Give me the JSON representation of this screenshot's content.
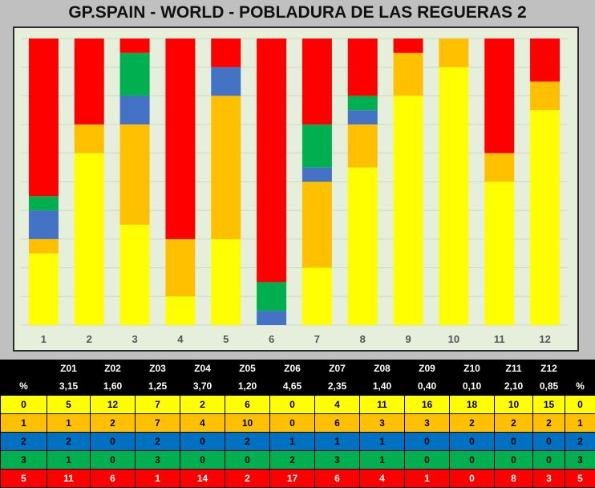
{
  "chart_data": {
    "type": "bar",
    "stacked": true,
    "title": "GP.SPAIN - WORLD  - POBLADURA DE LAS REGUERAS 2",
    "categories": [
      "1",
      "2",
      "3",
      "4",
      "5",
      "6",
      "7",
      "8",
      "9",
      "10",
      "11",
      "12"
    ],
    "series": [
      {
        "name": "0",
        "color": "#ffff00",
        "values": [
          5,
          12,
          7,
          2,
          6,
          0,
          4,
          11,
          16,
          18,
          10,
          15
        ]
      },
      {
        "name": "1",
        "color": "#ffc000",
        "values": [
          1,
          2,
          7,
          4,
          10,
          0,
          6,
          3,
          3,
          2,
          2,
          2
        ]
      },
      {
        "name": "2",
        "color": "#4472c4",
        "values": [
          2,
          0,
          2,
          0,
          2,
          1,
          1,
          1,
          0,
          0,
          0,
          0
        ]
      },
      {
        "name": "3",
        "color": "#00b050",
        "values": [
          1,
          0,
          3,
          0,
          0,
          2,
          3,
          1,
          0,
          0,
          0,
          0
        ]
      },
      {
        "name": "5",
        "color": "#ff0000",
        "values": [
          11,
          6,
          1,
          14,
          2,
          17,
          6,
          4,
          1,
          0,
          8,
          3
        ]
      }
    ],
    "ylim": [
      0,
      20
    ],
    "grid": true,
    "legend": "none"
  },
  "table": {
    "header_cells": [
      "",
      "Z01",
      "Z02",
      "Z03",
      "Z04",
      "Z05",
      "Z06",
      "Z07",
      "Z08",
      "Z09",
      "Z10",
      "Z11",
      "Z12",
      ""
    ],
    "pct_row": {
      "label": "%",
      "values": [
        "3,15",
        "1,60",
        "1,25",
        "3,70",
        "1,20",
        "4,65",
        "2,35",
        "1,40",
        "0,40",
        "0,10",
        "2,10",
        "0,85"
      ],
      "end": "%"
    },
    "rows": [
      {
        "label": "0",
        "values": [
          "5",
          "12",
          "7",
          "2",
          "6",
          "0",
          "4",
          "11",
          "16",
          "18",
          "10",
          "15"
        ],
        "end": "0",
        "bg": "#ffff00",
        "fg": "#000000"
      },
      {
        "label": "1",
        "values": [
          "1",
          "2",
          "7",
          "4",
          "10",
          "0",
          "6",
          "3",
          "3",
          "2",
          "2",
          "2"
        ],
        "end": "1",
        "bg": "#ffc000",
        "fg": "#000000"
      },
      {
        "label": "2",
        "values": [
          "2",
          "0",
          "2",
          "0",
          "2",
          "1",
          "1",
          "1",
          "0",
          "0",
          "0",
          "0"
        ],
        "end": "2",
        "bg": "#0070c0",
        "fg": "#000000"
      },
      {
        "label": "3",
        "values": [
          "1",
          "0",
          "3",
          "0",
          "0",
          "2",
          "3",
          "1",
          "0",
          "0",
          "0",
          "0"
        ],
        "end": "3",
        "bg": "#00b050",
        "fg": "#000000"
      },
      {
        "label": "5",
        "values": [
          "11",
          "6",
          "1",
          "14",
          "2",
          "17",
          "6",
          "4",
          "1",
          "0",
          "8",
          "3"
        ],
        "end": "5",
        "bg": "#ff0000",
        "fg": "#ffffff"
      }
    ]
  }
}
